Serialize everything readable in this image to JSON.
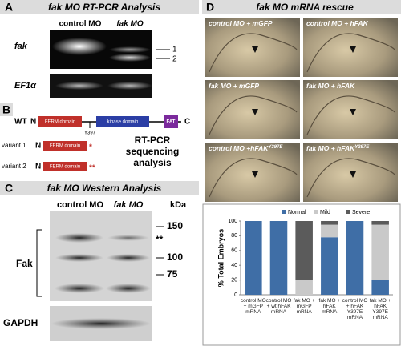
{
  "figure": {
    "A": {
      "letter": "A",
      "title": "fak MO RT-PCR Analysis",
      "lanes": [
        "control MO",
        "fak MO"
      ],
      "rows": [
        "fak",
        "EF1α"
      ],
      "bands": [
        "1",
        "2"
      ]
    },
    "B": {
      "letter": "B",
      "wt": "WT",
      "n_terminus": "N",
      "c_terminus": "C",
      "domains": [
        "FERM domain",
        "kinase domain",
        "FAT"
      ],
      "site": "Y397",
      "variants": [
        {
          "label": "variant 1",
          "stop": "*"
        },
        {
          "label": "variant 2",
          "stop": "**"
        }
      ],
      "note": [
        "RT-PCR",
        "sequencing",
        "analysis"
      ]
    },
    "C": {
      "letter": "C",
      "title": "fak MO Western Analysis",
      "lanes": [
        "control MO",
        "fak MO"
      ],
      "unit": "kDa",
      "markers": [
        "150",
        "100",
        "75"
      ],
      "star": "**",
      "rows": [
        "Fak",
        "GAPDH"
      ]
    },
    "D": {
      "letter": "D",
      "title": "fak MO mRNA rescue",
      "photos": [
        {
          "label": "control MO + mGFP"
        },
        {
          "label": "control MO + hFAK"
        },
        {
          "label": "fak MO + mGFP"
        },
        {
          "label": "fak MO + hFAK"
        },
        {
          "label": "control MO +hFAK",
          "sup": "Y397E"
        },
        {
          "label": "fak MO + hFAK",
          "sup": "Y397E"
        }
      ]
    }
  },
  "chart_data": {
    "type": "stacked_bar",
    "y_label": "% Total Embryos",
    "categories": [
      "control MO + mGFP mRNA",
      "control MO + wt hFAK mRNA",
      "fak MO + mGFP mRNA",
      "fak MO + hFAK mRNA",
      "control MO + hFAK Y397E mRNA",
      "fak MO + hFAK Y397E mRNA"
    ],
    "series": [
      {
        "name": "Normal",
        "color": "#3f6ea6",
        "values": [
          100,
          100,
          0,
          78,
          100,
          20
        ]
      },
      {
        "name": "Mild",
        "color": "#c9c9c9",
        "values": [
          0,
          0,
          20,
          17,
          0,
          75
        ]
      },
      {
        "name": "Severe",
        "color": "#5b5b5b",
        "values": [
          0,
          0,
          80,
          5,
          0,
          5
        ]
      }
    ],
    "ylim": [
      0,
      100
    ],
    "yticks": [
      0,
      20,
      40,
      60,
      80,
      100
    ],
    "grid": false,
    "legend": "top"
  }
}
